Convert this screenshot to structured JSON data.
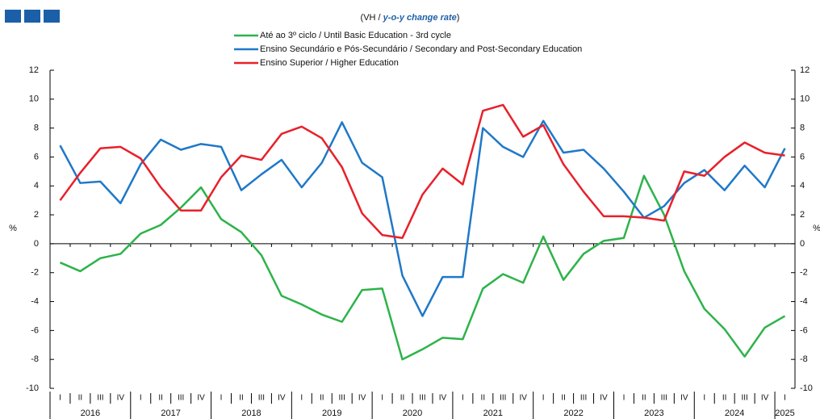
{
  "chart_data": {
    "type": "line",
    "subtitle": {
      "prefix": "(VH / ",
      "emphasis": "y-o-y change rate",
      "suffix": ")"
    },
    "ylabel": "%",
    "y2label": "%",
    "categories": [
      "I",
      "II",
      "III",
      "IV",
      "I",
      "II",
      "III",
      "IV",
      "I",
      "II",
      "III",
      "IV",
      "I",
      "II",
      "III",
      "IV",
      "I",
      "II",
      "III",
      "IV",
      "I",
      "II",
      "III",
      "IV",
      "I",
      "II",
      "III",
      "IV",
      "I",
      "II",
      "III",
      "IV",
      "I",
      "II",
      "III",
      "IV",
      "I"
    ],
    "year_labels": [
      "2016",
      "2017",
      "2018",
      "2019",
      "2020",
      "2021",
      "2022",
      "2023",
      "2024",
      "2025"
    ],
    "series": [
      {
        "name": "Até ao 3º ciclo / Until Basic Education - 3rd cycle",
        "color": "#2db34a",
        "values": [
          -1.3,
          -1.9,
          -1.0,
          -0.7,
          0.7,
          1.3,
          2.5,
          3.9,
          1.7,
          0.8,
          -0.8,
          -3.6,
          -4.2,
          -4.9,
          -5.4,
          -3.2,
          -3.1,
          -8.0,
          -7.3,
          -6.5,
          -6.6,
          -3.1,
          -2.1,
          -2.7,
          0.5,
          -2.5,
          -0.7,
          0.2,
          0.4,
          4.7,
          2.0,
          -1.9,
          -4.5,
          -5.9,
          -7.8,
          -5.8,
          -5.0
        ]
      },
      {
        "name": "Ensino Secundário e Pós-Secundário / Secondary and Post-Secondary Education",
        "color": "#1f78c8",
        "values": [
          6.8,
          4.2,
          4.3,
          2.8,
          5.5,
          7.2,
          6.5,
          6.9,
          6.7,
          3.7,
          4.8,
          5.8,
          3.9,
          5.6,
          8.4,
          5.6,
          4.6,
          -2.2,
          -5.0,
          -2.3,
          -2.3,
          8.0,
          6.7,
          6.0,
          8.5,
          6.3,
          6.5,
          5.2,
          3.6,
          1.8,
          2.6,
          4.2,
          5.1,
          3.7,
          5.4,
          3.9,
          6.6
        ]
      },
      {
        "name": "Ensino Superior / Higher Education",
        "color": "#e8202a",
        "values": [
          3.0,
          4.9,
          6.6,
          6.7,
          5.9,
          3.9,
          2.3,
          2.3,
          4.6,
          6.1,
          5.8,
          7.6,
          8.1,
          7.3,
          5.3,
          2.1,
          0.6,
          0.4,
          3.4,
          5.2,
          4.1,
          9.2,
          9.6,
          7.4,
          8.2,
          5.5,
          3.6,
          1.9,
          1.9,
          1.8,
          1.6,
          5.0,
          4.7,
          6.0,
          7.0,
          6.3,
          6.1
        ]
      }
    ],
    "ylim": [
      -10,
      12
    ],
    "yticks": [
      -10,
      -8,
      -6,
      -4,
      -2,
      0,
      2,
      4,
      6,
      8,
      10,
      12
    ],
    "y2lim": [
      -10,
      12
    ],
    "y2ticks": [
      -10,
      -8,
      -6,
      -4,
      -2,
      0,
      2,
      4,
      6,
      8,
      10,
      12
    ],
    "grid": false
  }
}
